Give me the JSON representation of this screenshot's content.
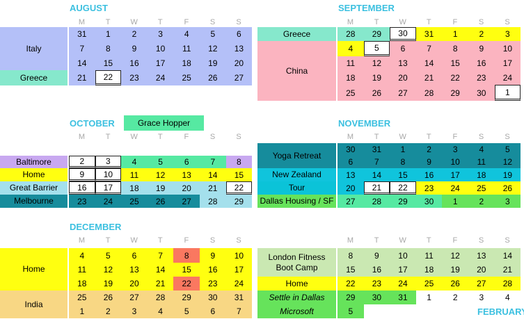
{
  "colors": {
    "blue": "#b4c0f8",
    "mint": "#86e8cc",
    "pink": "#fbb4c0",
    "yellow": "#ffff10",
    "purple": "#c8a8f0",
    "lightblue": "#a4e0ec",
    "teal": "#168c9c",
    "cyan": "#10c4dc",
    "lightcyan": "#0bc3d8",
    "softgreen": "#56e9a2",
    "green": "#66e35b",
    "lightgreen": "#cae8b2",
    "orange": "#f8d784",
    "red": "#fa7860",
    "header": "#3cc0e0"
  },
  "weekday_headers": [
    "M",
    "T",
    "W",
    "T",
    "F",
    "S",
    "S"
  ],
  "months": {
    "august": "AUGUST",
    "september": "SEPTEMBER",
    "october": "OCTOBER",
    "november": "NOVEMBER",
    "december": "DECEMBER",
    "february": "FEBRUARY"
  },
  "events": {
    "grace_hopper": "Grace Hopper",
    "italy": "Italy",
    "greece_aug": "Greece",
    "greece_sep": "Greece",
    "china": "China",
    "baltimore": "Baltimore",
    "home_oct": "Home",
    "great_barrier": "Great Barrier",
    "melbourne": "Melbourne",
    "yoga_retreat": "Yoga Retreat",
    "new_zealand": "New Zealand",
    "tour": "Tour",
    "dallas_housing": "Dallas Housing / SF",
    "home_dec": "Home",
    "india": "India",
    "london_fitness": "London Fitness Boot Camp",
    "home_jan": "Home",
    "settle_dallas": "Settle in Dallas",
    "microsoft": "Microsoft"
  },
  "grids": {
    "august": [
      [
        31,
        1,
        2,
        3,
        4,
        5,
        6
      ],
      [
        7,
        8,
        9,
        10,
        11,
        12,
        13
      ],
      [
        14,
        15,
        16,
        17,
        18,
        19,
        20
      ],
      [
        21,
        22,
        23,
        24,
        25,
        26,
        27
      ]
    ],
    "september": [
      [
        28,
        29,
        30,
        31,
        1,
        2,
        3
      ],
      [
        4,
        5,
        6,
        7,
        8,
        9,
        10
      ],
      [
        11,
        12,
        13,
        14,
        15,
        16,
        17
      ],
      [
        18,
        19,
        20,
        21,
        22,
        23,
        24
      ],
      [
        25,
        26,
        27,
        28,
        29,
        30,
        1
      ]
    ],
    "october": [
      [
        2,
        3,
        4,
        5,
        6,
        7,
        8
      ],
      [
        9,
        10,
        11,
        12,
        13,
        14,
        15
      ],
      [
        16,
        17,
        18,
        19,
        20,
        21,
        22
      ],
      [
        23,
        24,
        25,
        26,
        27,
        28,
        29
      ]
    ],
    "november": [
      [
        30,
        31,
        1,
        2,
        3,
        4,
        5
      ],
      [
        6,
        7,
        8,
        9,
        10,
        11,
        12
      ],
      [
        13,
        14,
        15,
        16,
        17,
        18,
        19
      ],
      [
        20,
        21,
        22,
        23,
        24,
        25,
        26
      ],
      [
        27,
        28,
        29,
        30,
        1,
        2,
        3
      ]
    ],
    "december": [
      [
        4,
        5,
        6,
        7,
        8,
        9,
        10
      ],
      [
        11,
        12,
        13,
        14,
        15,
        16,
        17
      ],
      [
        18,
        19,
        20,
        21,
        22,
        23,
        24
      ],
      [
        25,
        26,
        27,
        28,
        29,
        30,
        31
      ],
      [
        1,
        2,
        3,
        4,
        5,
        6,
        7
      ]
    ],
    "january": [
      [
        8,
        9,
        10,
        11,
        12,
        13,
        14
      ],
      [
        15,
        16,
        17,
        18,
        19,
        20,
        21
      ],
      [
        22,
        23,
        24,
        25,
        26,
        27,
        28
      ],
      [
        29,
        30,
        31,
        1,
        2,
        3,
        4
      ],
      [
        5
      ]
    ]
  }
}
